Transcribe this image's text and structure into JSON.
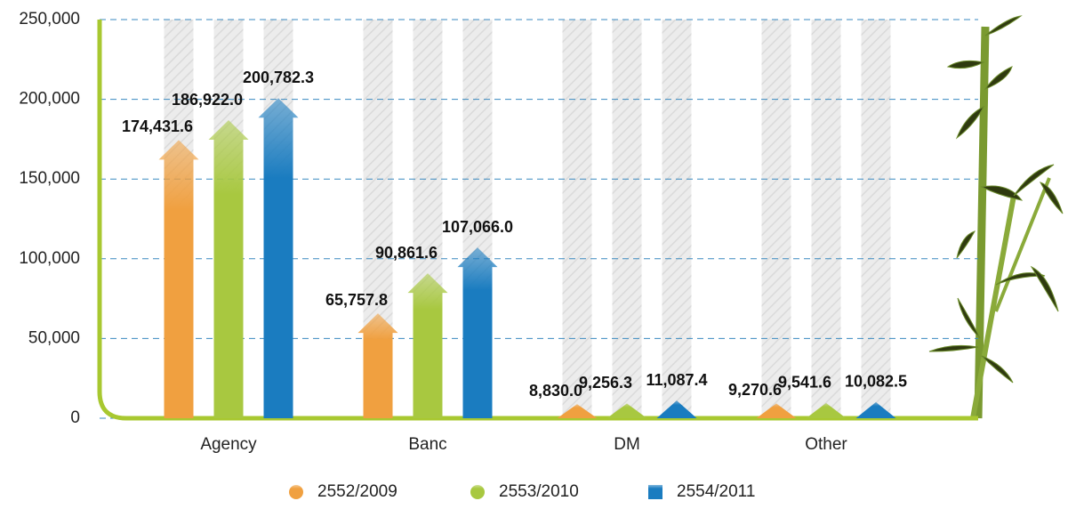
{
  "chart_data": {
    "type": "bar",
    "categories": [
      "Agency",
      "Banc",
      "DM",
      "Other"
    ],
    "series": [
      {
        "name": "2552/2009",
        "color": "#f0a040",
        "values": [
          174431.6,
          65757.8,
          8830.0,
          9270.6
        ],
        "value_labels": [
          "174,431.6",
          "65,757.8",
          "8,830.0",
          "9,270.6"
        ]
      },
      {
        "name": "2553/2010",
        "color": "#a8c840",
        "values": [
          186922.0,
          90861.6,
          9256.3,
          9541.6
        ],
        "value_labels": [
          "186,922.0",
          "90,861.6",
          "9,256.3",
          "9,541.6"
        ]
      },
      {
        "name": "2554/2011",
        "color": "#1a7cc0",
        "values": [
          200782.3,
          107066.0,
          11087.4,
          10082.5
        ],
        "value_labels": [
          "200,782.3",
          "107,066.0",
          "11,087.4",
          "10,082.5"
        ]
      }
    ],
    "ylim": [
      0,
      250000
    ],
    "yticks": [
      0,
      {
        "value": 50000,
        "label": "50,000"
      },
      {
        "value": 100000,
        "label": "100,000"
      },
      {
        "value": 150000,
        "label": "150,000"
      },
      {
        "value": 200000,
        "label": "200,000"
      },
      {
        "value": 250000,
        "label": "250,000"
      }
    ],
    "grid": true
  }
}
